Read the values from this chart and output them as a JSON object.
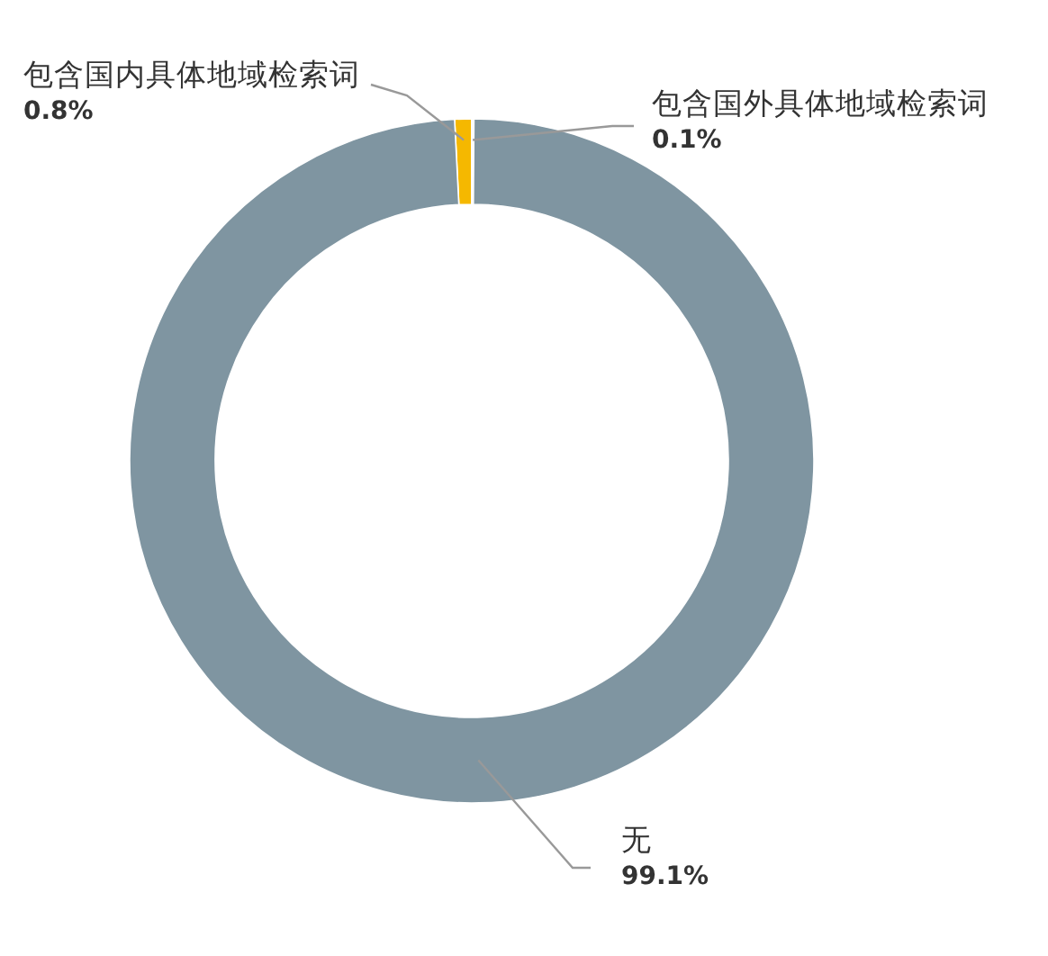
{
  "chart_data": {
    "type": "donut",
    "categories": [
      "包含国内具体地域检索词",
      "包含国外具体地域检索词",
      "无"
    ],
    "values": [
      0.8,
      0.1,
      99.1
    ],
    "value_labels": [
      "0.8%",
      "0.1%",
      "99.1%"
    ],
    "colors": [
      "#f5b800",
      "#f4f4f4",
      "#7f95a1"
    ]
  }
}
